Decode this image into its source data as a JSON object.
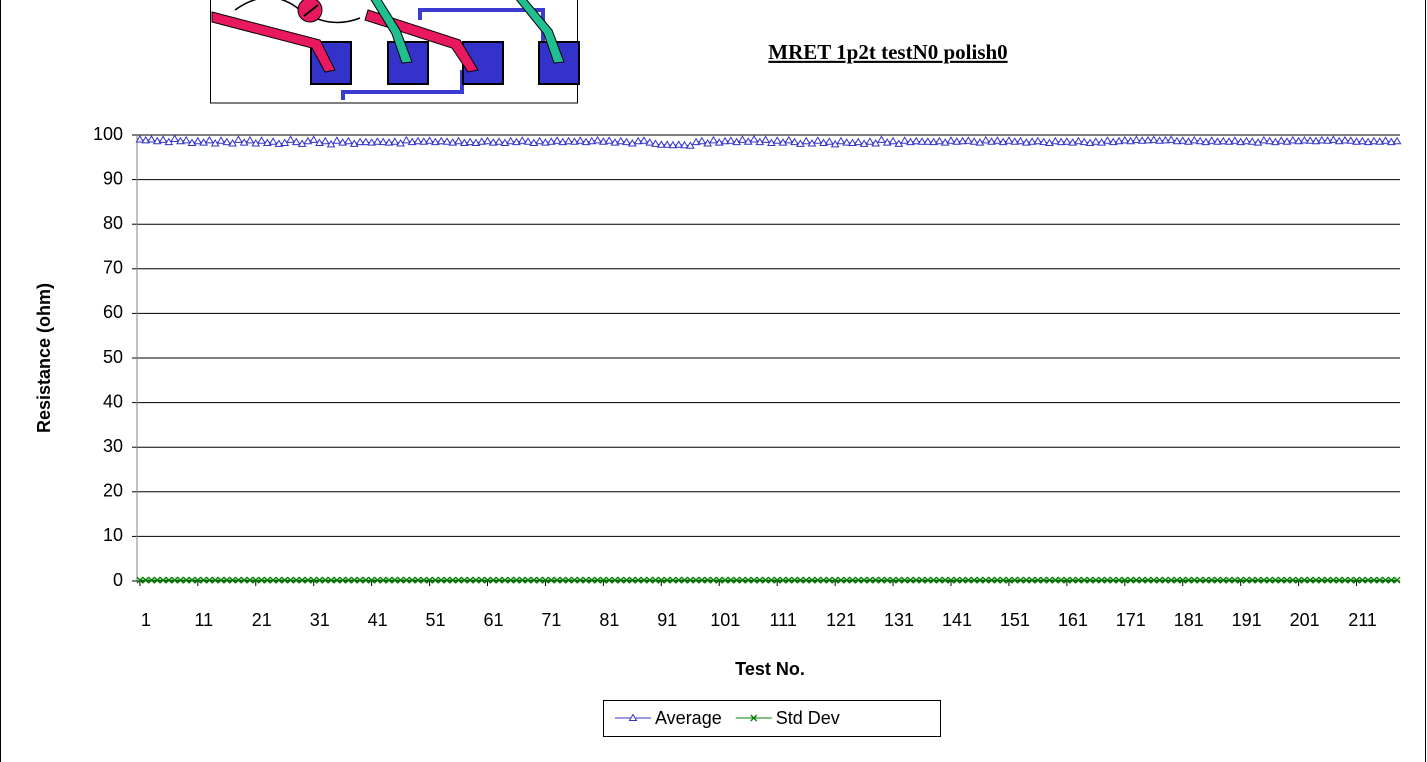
{
  "chart_data": {
    "type": "line",
    "title": "MRET 1p2t testN0 polish0",
    "x_label": "Test No.",
    "y_label": "Resistance (ohm)",
    "xlim": [
      0.5,
      218.5
    ],
    "xticks": [
      1,
      11,
      21,
      31,
      41,
      51,
      61,
      71,
      81,
      91,
      101,
      111,
      121,
      131,
      141,
      151,
      161,
      171,
      181,
      191,
      201,
      211
    ],
    "ylim": [
      0,
      100
    ],
    "yticks": [
      0,
      10,
      20,
      30,
      40,
      50,
      60,
      70,
      80,
      90,
      100
    ],
    "grid": true,
    "legend": "bottom",
    "x": [
      1,
      2,
      3,
      4,
      5,
      6,
      7,
      8,
      9,
      10,
      11,
      12,
      13,
      14,
      15,
      16,
      17,
      18,
      19,
      20,
      21,
      22,
      23,
      24,
      25,
      26,
      27,
      28,
      29,
      30,
      31,
      32,
      33,
      34,
      35,
      36,
      37,
      38,
      39,
      40,
      41,
      42,
      43,
      44,
      45,
      46,
      47,
      48,
      49,
      50,
      51,
      52,
      53,
      54,
      55,
      56,
      57,
      58,
      59,
      60,
      61,
      62,
      63,
      64,
      65,
      66,
      67,
      68,
      69,
      70,
      71,
      72,
      73,
      74,
      75,
      76,
      77,
      78,
      79,
      80,
      81,
      82,
      83,
      84,
      85,
      86,
      87,
      88,
      89,
      90,
      91,
      92,
      93,
      94,
      95,
      96,
      97,
      98,
      99,
      100,
      101,
      102,
      103,
      104,
      105,
      106,
      107,
      108,
      109,
      110,
      111,
      112,
      113,
      114,
      115,
      116,
      117,
      118,
      119,
      120,
      121,
      122,
      123,
      124,
      125,
      126,
      127,
      128,
      129,
      130,
      131,
      132,
      133,
      134,
      135,
      136,
      137,
      138,
      139,
      140,
      141,
      142,
      143,
      144,
      145,
      146,
      147,
      148,
      149,
      150,
      151,
      152,
      153,
      154,
      155,
      156,
      157,
      158,
      159,
      160,
      161,
      162,
      163,
      164,
      165,
      166,
      167,
      168,
      169,
      170,
      171,
      172,
      173,
      174,
      175,
      176,
      177,
      178,
      179,
      180,
      181,
      182,
      183,
      184,
      185,
      186,
      187,
      188,
      189,
      190,
      191,
      192,
      193,
      194,
      195,
      196,
      197,
      198,
      199,
      200,
      201,
      202,
      203,
      204,
      205,
      206,
      207,
      208,
      209,
      210,
      211,
      212,
      213,
      214,
      215,
      216,
      217,
      218
    ],
    "series": [
      {
        "name": "Average",
        "color": "#3333cc",
        "marker": "triangle",
        "values": [
          99,
          98.8,
          99,
          98.6,
          98.9,
          98.4,
          99.1,
          98.6,
          98.8,
          98.2,
          98.6,
          98.3,
          98.8,
          98.1,
          98.7,
          98.4,
          98.1,
          98.9,
          98.3,
          98.8,
          98.1,
          98.7,
          98.2,
          98.5,
          98.0,
          98.2,
          98.9,
          98.4,
          98.0,
          98.6,
          98.9,
          98.2,
          98.6,
          97.9,
          98.7,
          98.3,
          98.6,
          98.0,
          98.4,
          98.4,
          98.3,
          98.5,
          98.4,
          98.3,
          98.5,
          98.1,
          98.8,
          98.4,
          98.6,
          98.5,
          98.7,
          98.4,
          98.6,
          98.5,
          98.3,
          98.6,
          98.2,
          98.4,
          98.2,
          98.5,
          98.6,
          98.3,
          98.5,
          98.2,
          98.6,
          98.4,
          98.7,
          98.5,
          98.2,
          98.6,
          98.3,
          98.5,
          98.7,
          98.4,
          98.6,
          98.5,
          98.7,
          98.4,
          98.6,
          98.8,
          98.5,
          98.7,
          98.3,
          98.6,
          98.4,
          98.1,
          98.6,
          98.7,
          98.3,
          98.0,
          97.8,
          97.8,
          97.7,
          97.8,
          97.7,
          97.6,
          98.4,
          98.6,
          98.1,
          98.8,
          98.3,
          98.6,
          98.7,
          98.4,
          98.9,
          98.5,
          99.0,
          98.4,
          98.9,
          98.2,
          98.7,
          98.3,
          98.8,
          98.4,
          98.0,
          98.6,
          98.1,
          98.7,
          98.2,
          98.5,
          97.9,
          98.6,
          98.3,
          98.2,
          98.4,
          98.0,
          98.5,
          98.1,
          98.9,
          98.3,
          98.6,
          98.0,
          98.7,
          98.4,
          98.6,
          98.5,
          98.5,
          98.4,
          98.6,
          98.3,
          98.7,
          98.5,
          98.6,
          98.7,
          98.5,
          98.3,
          98.8,
          98.5,
          98.7,
          98.4,
          98.7,
          98.5,
          98.6,
          98.3,
          98.5,
          98.6,
          98.4,
          98.2,
          98.6,
          98.4,
          98.5,
          98.3,
          98.6,
          98.4,
          98.2,
          98.5,
          98.3,
          98.7,
          98.4,
          98.6,
          98.8,
          98.6,
          98.9,
          98.7,
          98.8,
          98.9,
          98.7,
          98.8,
          98.9,
          98.6,
          98.7,
          98.5,
          98.8,
          98.6,
          98.4,
          98.7,
          98.5,
          98.6,
          98.5,
          98.7,
          98.4,
          98.6,
          98.5,
          98.3,
          98.8,
          98.6,
          98.4,
          98.7,
          98.5,
          98.8,
          98.6,
          98.8,
          98.7,
          98.6,
          98.8,
          98.7,
          98.9,
          98.6,
          98.8,
          98.7,
          98.5,
          98.6,
          98.4,
          98.6,
          98.5,
          98.7,
          98.4,
          98.6
        ]
      },
      {
        "name": "Std Dev",
        "color": "#008000",
        "marker": "x",
        "values": [
          0.2,
          0.2,
          0.2,
          0.2,
          0.2,
          0.2,
          0.2,
          0.2,
          0.2,
          0.2,
          0.2,
          0.2,
          0.2,
          0.2,
          0.2,
          0.2,
          0.2,
          0.2,
          0.2,
          0.2,
          0.2,
          0.2,
          0.2,
          0.2,
          0.2,
          0.2,
          0.2,
          0.2,
          0.2,
          0.2,
          0.2,
          0.2,
          0.2,
          0.2,
          0.2,
          0.2,
          0.2,
          0.2,
          0.2,
          0.2,
          0.2,
          0.2,
          0.2,
          0.2,
          0.2,
          0.2,
          0.2,
          0.2,
          0.2,
          0.2,
          0.2,
          0.2,
          0.2,
          0.2,
          0.2,
          0.2,
          0.2,
          0.2,
          0.2,
          0.2,
          0.2,
          0.2,
          0.2,
          0.2,
          0.2,
          0.2,
          0.2,
          0.2,
          0.2,
          0.2,
          0.2,
          0.2,
          0.2,
          0.2,
          0.2,
          0.2,
          0.2,
          0.2,
          0.2,
          0.2,
          0.2,
          0.2,
          0.2,
          0.2,
          0.2,
          0.2,
          0.2,
          0.2,
          0.2,
          0.2,
          0.2,
          0.2,
          0.2,
          0.2,
          0.2,
          0.2,
          0.2,
          0.2,
          0.2,
          0.2,
          0.2,
          0.2,
          0.2,
          0.2,
          0.2,
          0.2,
          0.2,
          0.2,
          0.2,
          0.2,
          0.2,
          0.2,
          0.2,
          0.2,
          0.2,
          0.2,
          0.2,
          0.2,
          0.2,
          0.2,
          0.2,
          0.2,
          0.2,
          0.2,
          0.2,
          0.2,
          0.2,
          0.2,
          0.2,
          0.2,
          0.2,
          0.2,
          0.2,
          0.2,
          0.2,
          0.2,
          0.2,
          0.2,
          0.2,
          0.2,
          0.2,
          0.2,
          0.2,
          0.2,
          0.2,
          0.2,
          0.2,
          0.2,
          0.2,
          0.2,
          0.2,
          0.2,
          0.2,
          0.2,
          0.2,
          0.2,
          0.2,
          0.2,
          0.2,
          0.2,
          0.2,
          0.2,
          0.2,
          0.2,
          0.2,
          0.2,
          0.2,
          0.2,
          0.2,
          0.2,
          0.2,
          0.2,
          0.2,
          0.2,
          0.2,
          0.2,
          0.2,
          0.2,
          0.2,
          0.2,
          0.2,
          0.2,
          0.2,
          0.2,
          0.2,
          0.2,
          0.2,
          0.2,
          0.2,
          0.2,
          0.2,
          0.2,
          0.2,
          0.2,
          0.2,
          0.2,
          0.2,
          0.2,
          0.2,
          0.2,
          0.2,
          0.2,
          0.2,
          0.2,
          0.2,
          0.2,
          0.2,
          0.2,
          0.2,
          0.2,
          0.2,
          0.2,
          0.2,
          0.2,
          0.2,
          0.2,
          0.2,
          0.2
        ]
      }
    ]
  }
}
